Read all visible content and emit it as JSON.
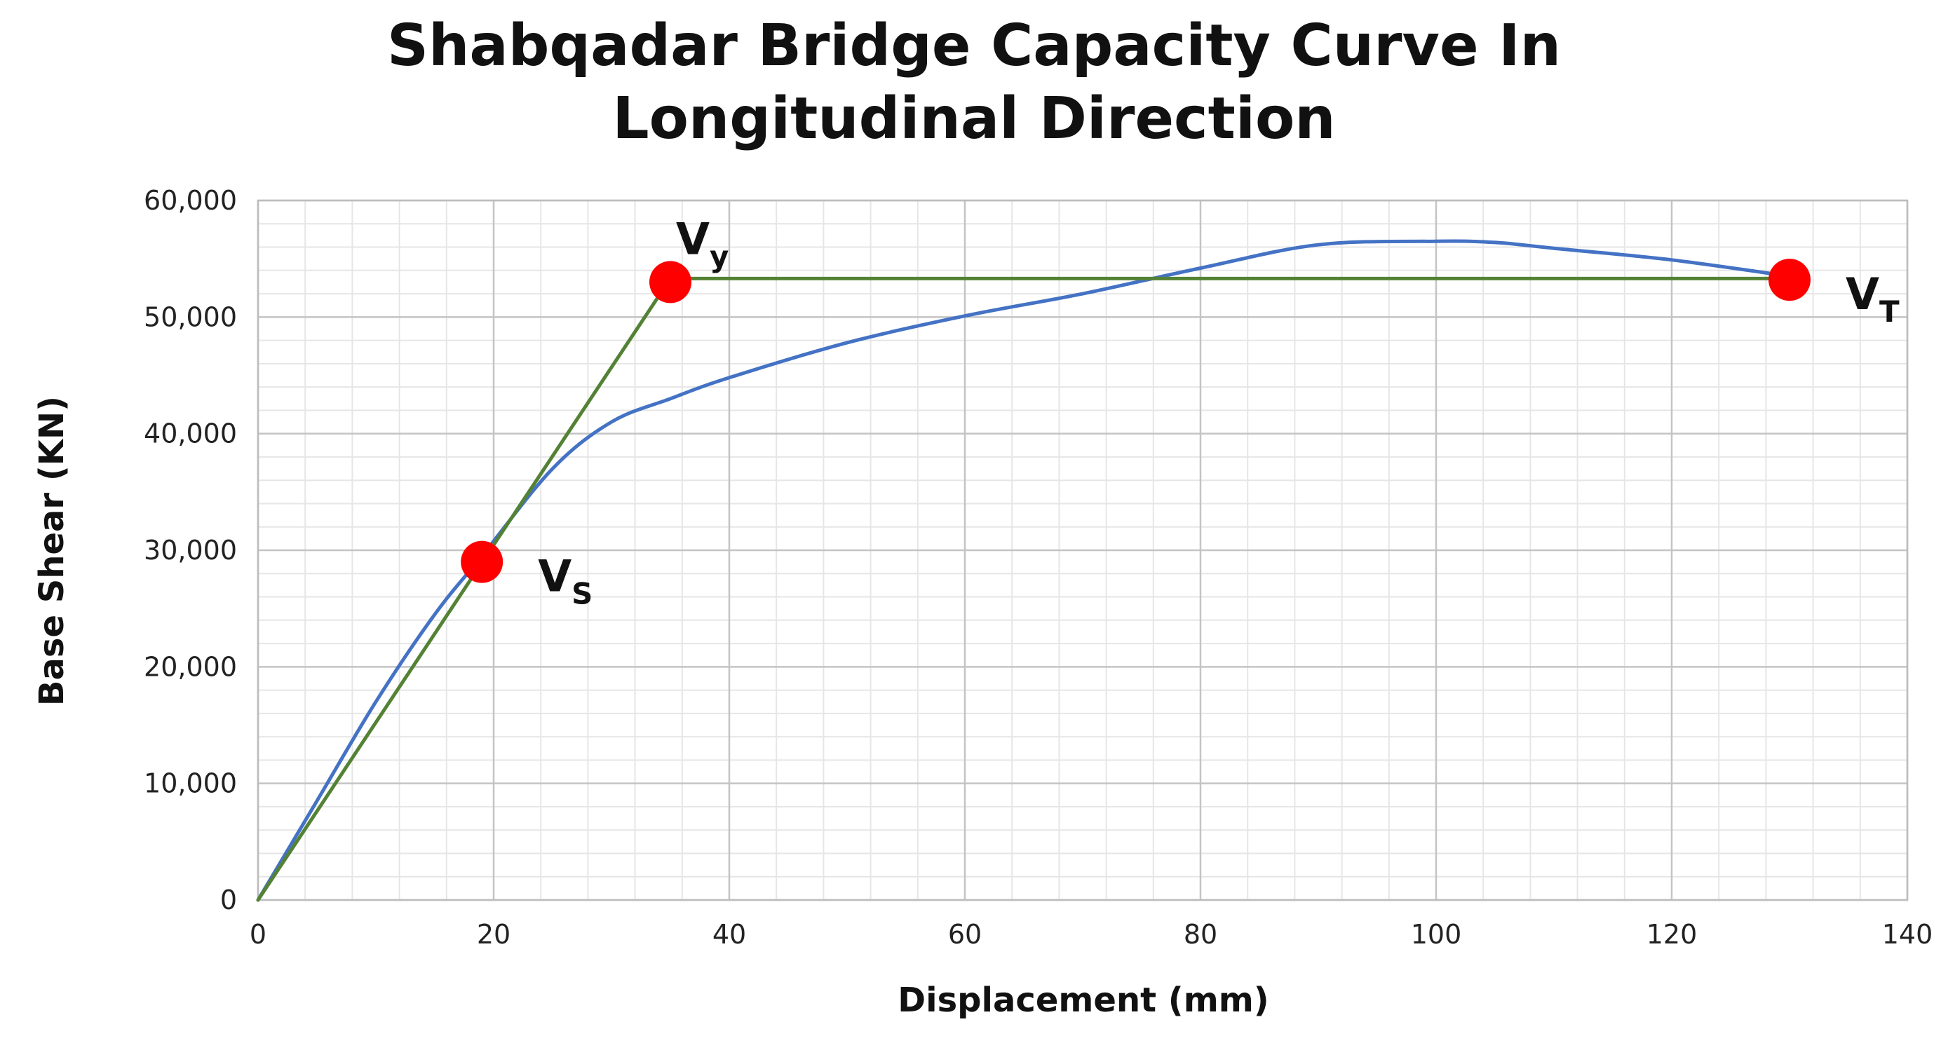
{
  "chart_data": {
    "type": "line",
    "title_lines": [
      "Shabqadar Bridge Capacity Curve In",
      "Longitudinal Direction"
    ],
    "xlabel": "Displacement (mm)",
    "ylabel": "Base Shear (KN)",
    "xlim": [
      0,
      140
    ],
    "ylim": [
      0,
      60000
    ],
    "x_ticks": [
      0,
      20,
      40,
      60,
      80,
      100,
      120,
      140
    ],
    "y_ticks": [
      0,
      10000,
      20000,
      30000,
      40000,
      50000,
      60000
    ],
    "y_tick_labels": [
      "0",
      "10,000",
      "20,000",
      "30,000",
      "40,000",
      "50,000",
      "60,000"
    ],
    "grid": true,
    "series": [
      {
        "color": "#4472c4",
        "x": [
          0,
          5,
          10,
          15,
          19,
          25,
          30,
          35,
          40,
          50,
          60,
          70,
          80,
          90,
          100,
          105,
          110,
          120,
          130
        ],
        "y": [
          0,
          8500,
          17000,
          24500,
          29500,
          37000,
          41000,
          43000,
          44800,
          47800,
          50100,
          52000,
          54200,
          56200,
          56500,
          56400,
          55900,
          54900,
          53500
        ]
      },
      {
        "color": "#548235",
        "x": [
          0,
          35,
          130
        ],
        "y": [
          0,
          53300,
          53300
        ]
      }
    ],
    "markers": {
      "color": "#ff0000",
      "points": [
        {
          "x": 19,
          "y": 29000,
          "label": "V",
          "sub": "S",
          "pos": "lower-right"
        },
        {
          "x": 35,
          "y": 53000,
          "label": "V",
          "sub": "y",
          "pos": "above"
        },
        {
          "x": 130,
          "y": 53200,
          "label": "V",
          "sub": "T",
          "pos": "lower-right"
        }
      ]
    }
  }
}
